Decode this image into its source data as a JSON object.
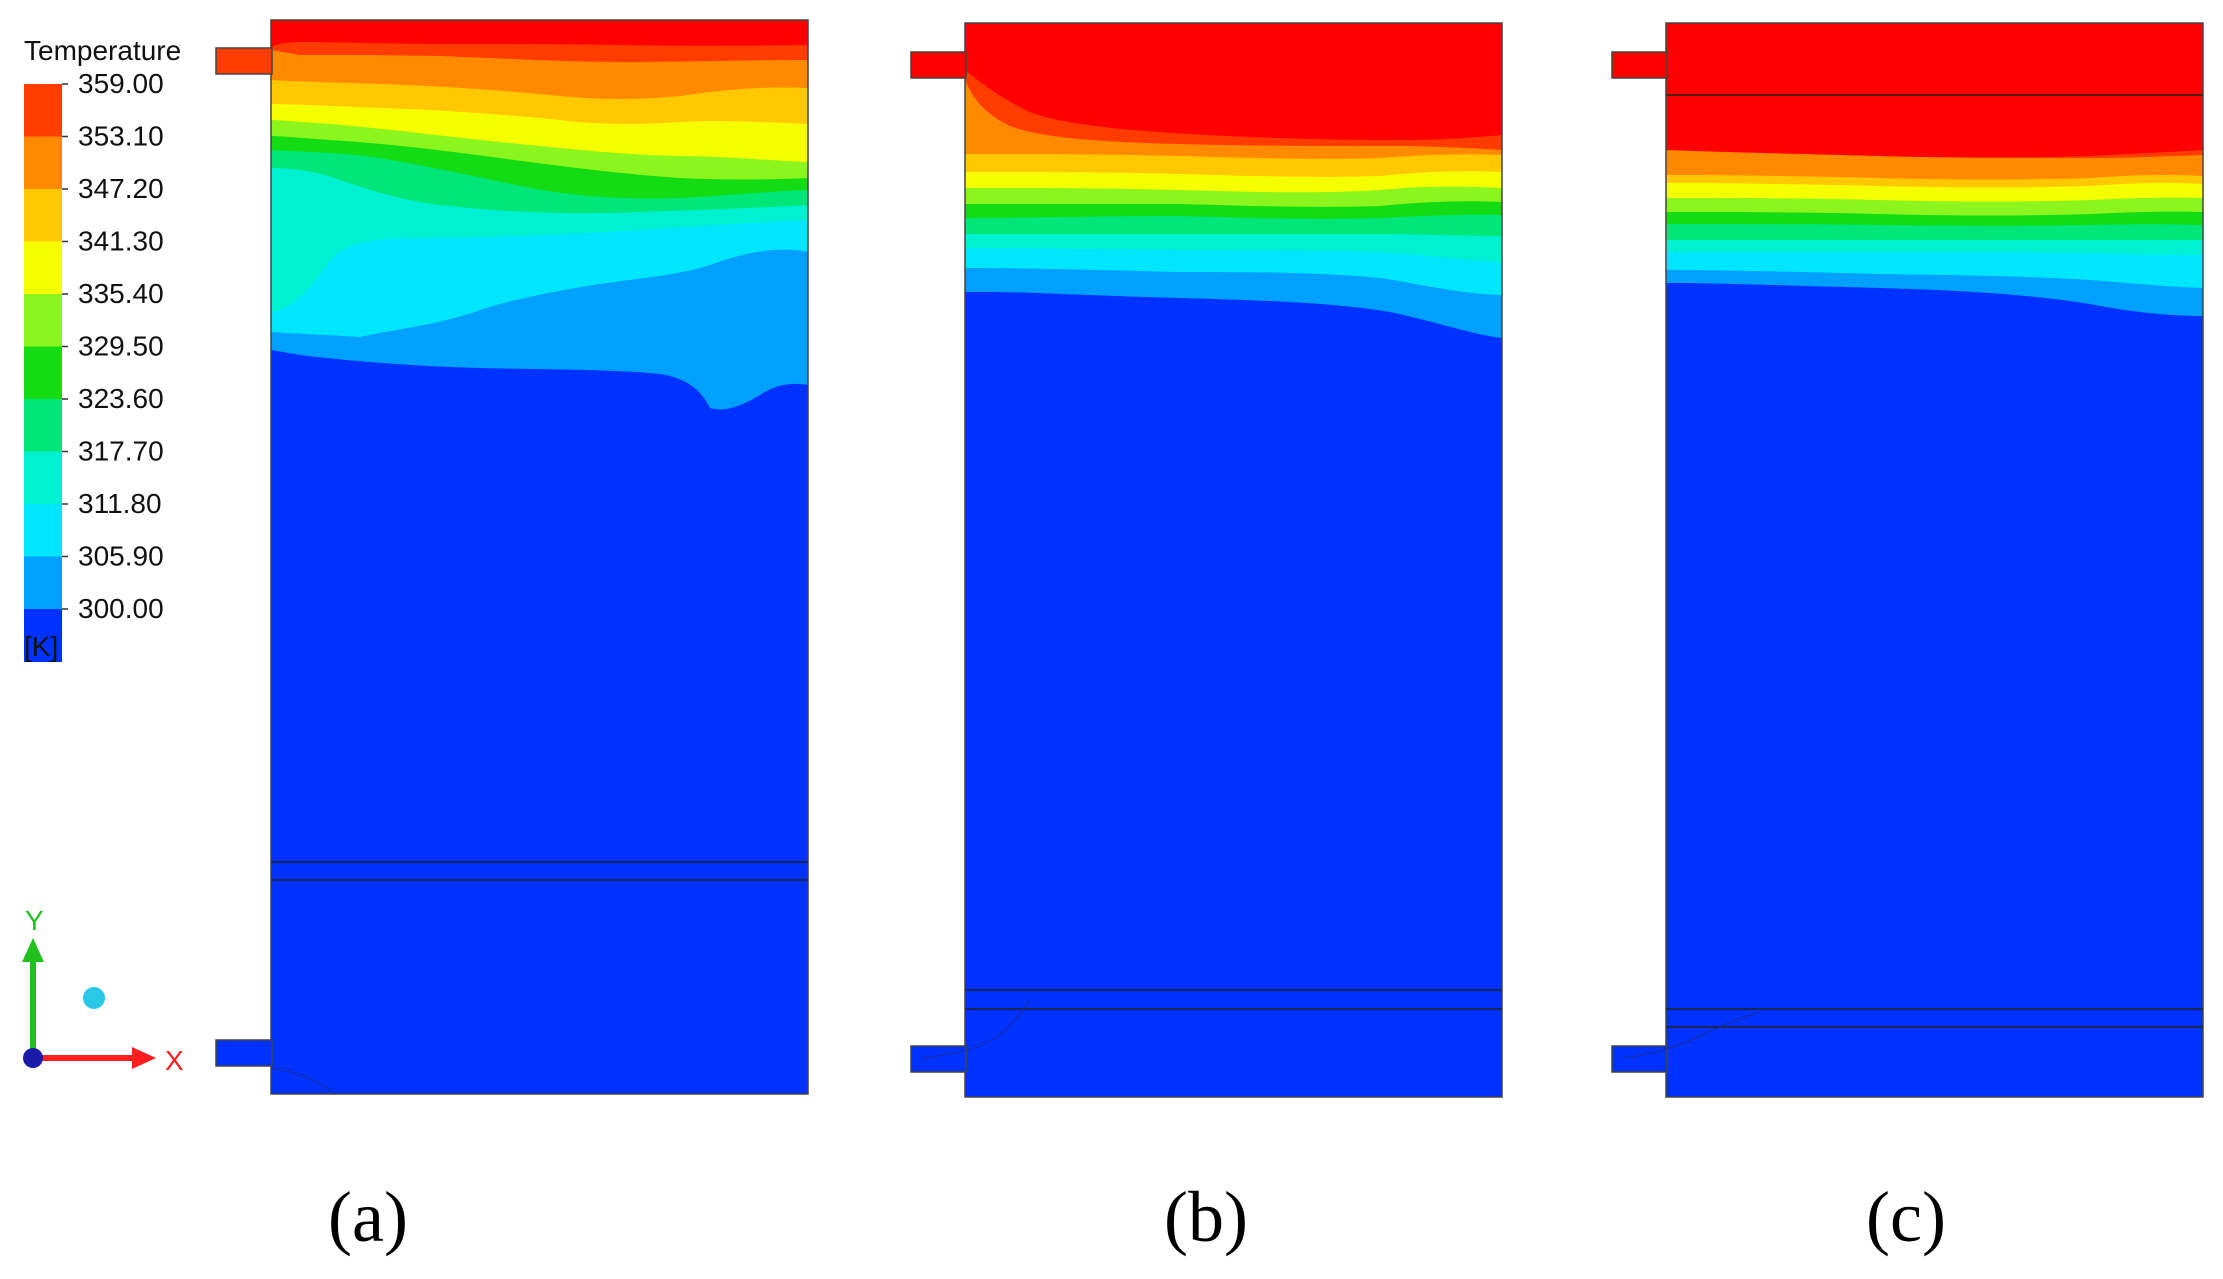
{
  "legend": {
    "title": "Temperature",
    "unit": "[K]",
    "levels": [
      "359.00",
      "353.10",
      "347.20",
      "341.30",
      "335.40",
      "329.50",
      "323.60",
      "317.70",
      "311.80",
      "305.90",
      "300.00"
    ],
    "band_colors": [
      "#ff3c00",
      "#ff8a00",
      "#ffc800",
      "#f5ff00",
      "#8cf51e",
      "#14dc14",
      "#00e678",
      "#00f0d2",
      "#00e6ff",
      "#00a0ff",
      "#0032ff"
    ]
  },
  "colors": {
    "red": "#ff0000",
    "red_orange": "#ff3c00",
    "orange": "#ff8a00",
    "amber": "#ffc800",
    "yellow": "#f5ff00",
    "lime": "#8cf51e",
    "green": "#14dc14",
    "spring": "#00e678",
    "aqua": "#00f0d2",
    "cyan": "#00e6ff",
    "sky": "#00a0ff",
    "blue": "#0032ff"
  },
  "axes_triad": {
    "y_label": "Y",
    "x_label": "X"
  },
  "panels": [
    {
      "id": "a",
      "label": "(a)"
    },
    {
      "id": "b",
      "label": "(b)"
    },
    {
      "id": "c",
      "label": "(c)"
    }
  ]
}
